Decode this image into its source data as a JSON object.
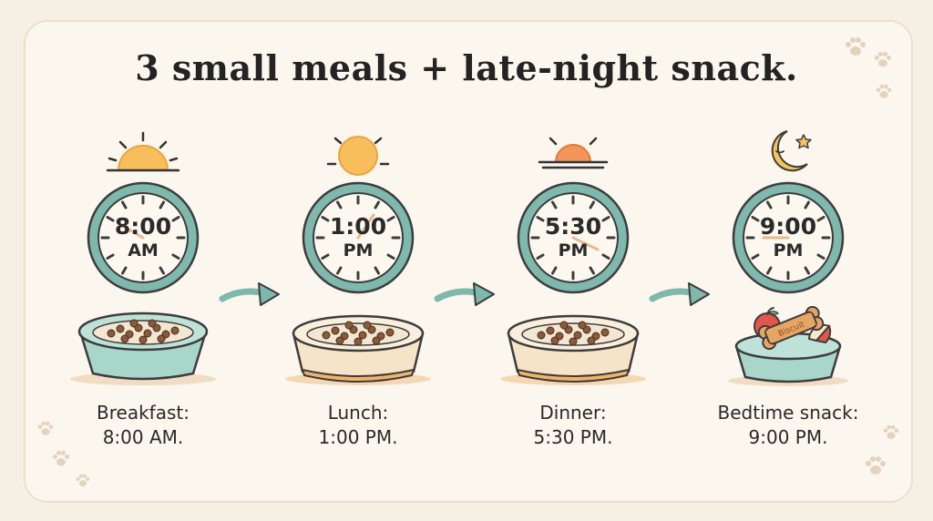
{
  "title": "3 small meals + late-night snack.",
  "colors": {
    "clock_rim": "#7fb8ac",
    "clock_face": "#fdf8ef",
    "sun": "#f9be5c",
    "setting_sun": "#f4965a",
    "moon": "#f6c55a",
    "bowl_teal": "#a9d6cb",
    "bowl_cream": "#f6e4c8",
    "arrow": "#7fb8ac",
    "kibble": "#8a5a3a",
    "background": "#f6efe3"
  },
  "meals": [
    {
      "icon": "rising-sun-icon",
      "clock_time": "8:00",
      "clock_ampm": "AM",
      "bowl": "teal",
      "label": "Breakfast:",
      "time": "8:00 AM."
    },
    {
      "icon": "sun-icon",
      "clock_time": "1:00",
      "clock_ampm": "PM",
      "bowl": "cream",
      "label": "Lunch:",
      "time": "1:00 PM."
    },
    {
      "icon": "setting-sun-icon",
      "clock_time": "5:30",
      "clock_ampm": "PM",
      "bowl": "cream",
      "label": "Dinner:",
      "time": "5:30 PM."
    },
    {
      "icon": "moon-star-icon",
      "clock_time": "9:00",
      "clock_ampm": "PM",
      "bowl": "teal-snack",
      "label": "Bedtime snack:",
      "time": "9:00 PM."
    }
  ],
  "snack_bowl": {
    "biscuit_text": "Biscuit"
  }
}
